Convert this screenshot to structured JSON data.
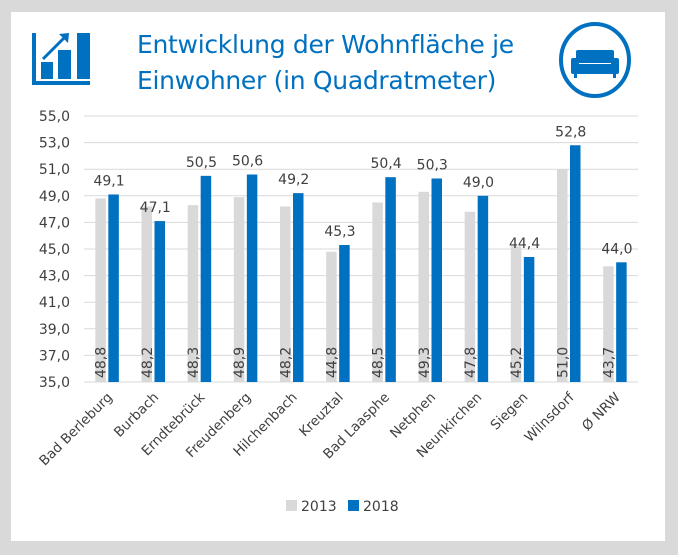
{
  "header": {
    "title_line1": "Entwicklung der Wohnfläche je",
    "title_line2": "Einwohner (in Quadratmeter)",
    "left_icon": "growth-bar-chart-icon",
    "right_icon": "sofa-icon"
  },
  "colors": {
    "accent": "#0070c0",
    "series_2013": "#d9d9d9",
    "series_2018": "#0070c0",
    "gridline": "#d9d9d9",
    "text": "#404040",
    "frame": "#d9d9d9"
  },
  "chart_data": {
    "type": "bar",
    "title": "Entwicklung der Wohnfläche je Einwohner (in Quadratmeter)",
    "xlabel": "",
    "ylabel": "",
    "ylim": [
      35.0,
      55.0
    ],
    "yticks": [
      "35,0",
      "37,0",
      "39,0",
      "41,0",
      "43,0",
      "45,0",
      "47,0",
      "49,0",
      "51,0",
      "53,0",
      "55,0"
    ],
    "ytick_values": [
      35,
      37,
      39,
      41,
      43,
      45,
      47,
      49,
      51,
      53,
      55
    ],
    "grid": true,
    "legend_position": "bottom",
    "categories": [
      "Bad Berleburg",
      "Burbach",
      "Erndtebrück",
      "Freudenberg",
      "Hilchenbach",
      "Kreuztal",
      "Bad Laasphe",
      "Netphen",
      "Neunkirchen",
      "Siegen",
      "Wilnsdorf",
      "Ø NRW"
    ],
    "series": [
      {
        "name": "2013",
        "values": [
          48.8,
          48.2,
          48.3,
          48.9,
          48.2,
          44.8,
          48.5,
          49.3,
          47.8,
          45.2,
          51.0,
          43.7
        ],
        "labels": [
          "48,8",
          "48,2",
          "48,3",
          "48,9",
          "48,2",
          "44,8",
          "48,5",
          "49,3",
          "47,8",
          "45,2",
          "51,0",
          "43,7"
        ],
        "label_position": "inside-base-rotated"
      },
      {
        "name": "2018",
        "values": [
          49.1,
          47.1,
          50.5,
          50.6,
          49.2,
          45.3,
          50.4,
          50.3,
          49.0,
          44.4,
          52.8,
          44.0
        ],
        "labels": [
          "49,1",
          "47,1",
          "50,5",
          "50,6",
          "49,2",
          "45,3",
          "50,4",
          "50,3",
          "49,0",
          "44,4",
          "52,8",
          "44,0"
        ],
        "label_position": "outside-end"
      }
    ]
  }
}
